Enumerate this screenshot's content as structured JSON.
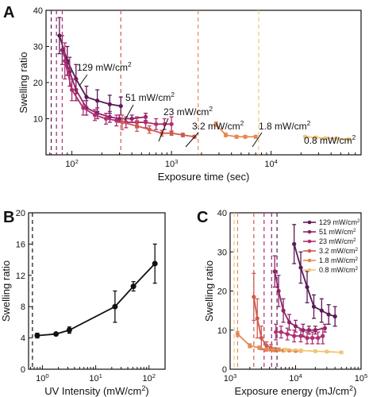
{
  "chart_data": [
    {
      "panel": "A",
      "type": "line",
      "xlabel": "Exposure time (sec)",
      "ylabel": "Swelling ratio",
      "xscale": "log",
      "xlim": [
        55,
        80000
      ],
      "ylim": [
        0,
        40
      ],
      "yticks": [
        10,
        20,
        30,
        40
      ],
      "xtick_labels": [
        {
          "v": 100,
          "b": "10",
          "e": "2"
        },
        {
          "v": 1000,
          "b": "10",
          "e": "3"
        },
        {
          "v": 10000,
          "b": "10",
          "e": "4"
        }
      ],
      "vlines": [
        {
          "x": 62,
          "color": "#5b1a55"
        },
        {
          "x": 70,
          "color": "#8e2468"
        },
        {
          "x": 80,
          "color": "#b02e70"
        },
        {
          "x": 310,
          "color": "#cf5a4e"
        },
        {
          "x": 1850,
          "color": "#e28a55"
        },
        {
          "x": 7500,
          "color": "#f0c578"
        }
      ],
      "series": [
        {
          "label": "129 mW/cm²",
          "label_parts": [
            "129 mW/cm",
            "2"
          ],
          "color": "#5b1a55",
          "x": [
            75,
            90,
            110,
            140,
            180,
            240,
            310
          ],
          "y": [
            33,
            26,
            21,
            16,
            15,
            14,
            13.5
          ],
          "err": [
            5,
            4,
            4,
            3,
            3,
            2.5,
            2.5
          ]
        },
        {
          "label": "51 mW/cm²",
          "label_parts": [
            "51 mW/cm",
            "2"
          ],
          "color": "#8e2468",
          "x": [
            80,
            95,
            110,
            140,
            180,
            240,
            300,
            400,
            550
          ],
          "y": [
            29,
            23,
            18,
            13,
            11.5,
            10.5,
            10,
            10,
            10.5
          ],
          "err": [
            4,
            4,
            3,
            2,
            1.5,
            1.5,
            1,
            1,
            1
          ]
        },
        {
          "label": "23 mW/cm²",
          "label_parts": [
            "23 mW/cm",
            "2"
          ],
          "color": "#b02e70",
          "x": [
            85,
            100,
            130,
            170,
            220,
            280,
            350,
            450,
            550,
            700,
            850,
            1000
          ],
          "y": [
            26,
            18,
            13,
            11,
            10,
            9.5,
            9,
            9,
            9,
            8.5,
            8.5,
            8.5
          ],
          "err": [
            5,
            3,
            2,
            1.5,
            1.5,
            1.5,
            1.5,
            1.5,
            1.5,
            1.5,
            1.5,
            2
          ]
        },
        {
          "label": "3.2 mW/cm²",
          "label_parts": [
            "3.2 mW/cm",
            "2"
          ],
          "color": "#cf5a4e",
          "x": [
            320,
            450,
            600,
            800,
            1000,
            1300,
            1700
          ],
          "y": [
            9,
            8,
            7,
            6,
            6,
            5.5,
            5
          ],
          "err": [
            2,
            1.5,
            1,
            0.8,
            0.6,
            0.5,
            0.4
          ]
        },
        {
          "label": "1.8 mW/cm²",
          "label_parts": [
            "1.8 mW/cm",
            "2"
          ],
          "color": "#e28a55",
          "x": [
            2800,
            3500,
            4500,
            5500,
            7000
          ],
          "y": [
            8.5,
            5.5,
            5,
            5,
            5
          ],
          "err": [
            0.6,
            0.5,
            0.4,
            0.4,
            0.4
          ]
        },
        {
          "label": "0.8 mW/cm²",
          "label_parts": [
            "0.8 mW/cm",
            "2"
          ],
          "color": "#f0c578",
          "x": [
            22000,
            28000,
            35000,
            45000,
            60000
          ],
          "y": [
            5,
            4.8,
            4.6,
            4.5,
            4.3
          ],
          "err": [
            0.3,
            0.3,
            0.3,
            0.3,
            0.3
          ]
        }
      ]
    },
    {
      "panel": "B",
      "type": "line",
      "xlabel": "UV Intensity (mW/cm²)",
      "xlabel_parts": [
        "UV Intensity (mW/cm",
        "2",
        ")"
      ],
      "ylabel": "Swelling ratio",
      "xscale": "log",
      "xlim": [
        0.55,
        200
      ],
      "ylim": [
        0,
        20
      ],
      "yticks": [
        0,
        4,
        8,
        12,
        16,
        20
      ],
      "xtick_labels": [
        {
          "v": 1,
          "t": "10",
          "e": "0"
        },
        {
          "v": 10,
          "t": "10",
          "e": "1"
        },
        {
          "v": 100,
          "t": "10",
          "e": "2"
        }
      ],
      "vlines": [
        {
          "x": 0.65,
          "color": "#111111"
        }
      ],
      "series": [
        {
          "color": "#111111",
          "x": [
            0.8,
            1.8,
            3.2,
            23,
            51,
            129
          ],
          "y": [
            4.3,
            4.5,
            5,
            8,
            10.6,
            13.5
          ],
          "err": [
            0.3,
            0.2,
            0.4,
            2,
            0.6,
            2.5
          ]
        }
      ]
    },
    {
      "panel": "C",
      "type": "line",
      "xlabel": "Exposure energy (mJ/cm²)",
      "xlabel_parts": [
        "Exposure energy (mJ/cm",
        "2",
        ")"
      ],
      "ylabel": "Swelling ratio",
      "xscale": "log",
      "xlim": [
        1000,
        100000
      ],
      "ylim": [
        0,
        40
      ],
      "yticks": [
        0,
        10,
        20,
        30,
        40
      ],
      "xtick_labels": [
        {
          "v": 1000,
          "t": "10",
          "e": "3"
        },
        {
          "v": 10000,
          "t": "10",
          "e": "4"
        },
        {
          "v": 100000,
          "t": "10",
          "e": "5"
        }
      ],
      "legend_position": "top-right",
      "vlines": [
        {
          "x": 1150,
          "color": "#f0c578"
        },
        {
          "x": 1300,
          "color": "#e28a55"
        },
        {
          "x": 2300,
          "color": "#cf5a4e"
        },
        {
          "x": 3300,
          "color": "#b02e70"
        },
        {
          "x": 4300,
          "color": "#8e2468"
        },
        {
          "x": 5200,
          "color": "#5b1a55"
        }
      ],
      "series": [
        {
          "label": "129 mW/cm²",
          "label_parts": [
            "129 mW/cm",
            "2"
          ],
          "color": "#5b1a55",
          "x": [
            9500,
            12000,
            15000,
            19000,
            25000,
            32000,
            40000
          ],
          "y": [
            32,
            26,
            21,
            16,
            15,
            14,
            13.5
          ],
          "err": [
            5,
            4,
            4,
            3,
            3,
            2.5,
            2.5
          ]
        },
        {
          "label": "51 mW/cm²",
          "label_parts": [
            "51 mW/cm",
            "2"
          ],
          "color": "#8e2468",
          "x": [
            4800,
            5500,
            6500,
            8000,
            10000,
            13000,
            16000,
            20000,
            28000
          ],
          "y": [
            25,
            20,
            15,
            12,
            11,
            10,
            10,
            10,
            10.5
          ],
          "err": [
            4,
            4,
            3,
            2,
            1.5,
            1.5,
            1,
            1,
            1
          ]
        },
        {
          "label": "23 mW/cm²",
          "label_parts": [
            "23 mW/cm",
            "2"
          ],
          "color": "#b02e70",
          "x": [
            5000,
            6000,
            7500,
            9500,
            12000,
            15000,
            18000,
            22000,
            26000
          ],
          "y": [
            9.5,
            9.5,
            9,
            8.5,
            8.5,
            8,
            8,
            8,
            8.5
          ],
          "err": [
            2,
            1.5,
            1.5,
            1.5,
            1.5,
            1.5,
            1.5,
            1.5,
            2
          ]
        },
        {
          "label": "3.2 mW/cm²",
          "label_parts": [
            "3.2 mW/cm",
            "2"
          ],
          "color": "#cf5a4e",
          "x": [
            2300,
            2600,
            3000,
            3600,
            4200,
            4800,
            5500
          ],
          "y": [
            18.5,
            13,
            8,
            6,
            5.5,
            5,
            5
          ],
          "err": [
            6,
            5,
            3,
            1,
            0.8,
            0.5,
            0.4
          ]
        },
        {
          "label": "1.8 mW/cm²",
          "label_parts": [
            "1.8 mW/cm",
            "2"
          ],
          "color": "#e28a55",
          "x": [
            1300,
            2000,
            2800,
            3600,
            4500,
            5500,
            6500,
            8000,
            10000,
            12000
          ],
          "y": [
            9,
            6,
            5.5,
            5,
            5,
            5,
            4.8,
            4.8,
            4.7,
            4.7
          ],
          "err": [
            0.6,
            0.5,
            0.4,
            0.4,
            0.4,
            0.4,
            0.3,
            0.3,
            0.3,
            0.3
          ]
        },
        {
          "label": "0.8 mW/cm²",
          "label_parts": [
            "0.8 mW/cm",
            "2"
          ],
          "color": "#f0c578",
          "x": [
            7000,
            12000,
            20000,
            30000,
            50000
          ],
          "y": [
            5,
            4.8,
            4.6,
            4.5,
            4.3
          ],
          "err": [
            0.3,
            0.3,
            0.3,
            0.3,
            0.3
          ]
        }
      ]
    }
  ]
}
